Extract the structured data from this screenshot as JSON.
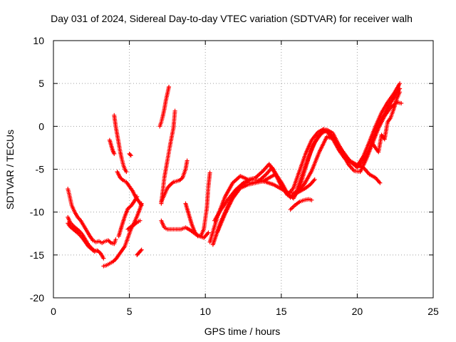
{
  "chart_data": {
    "type": "scatter",
    "title": "Day 031 of 2024, Sidereal Day-to-day VTEC variation (SDTVAR) for receiver walh",
    "xlabel": "GPS time / hours",
    "ylabel": "SDTVAR / TECUs",
    "xlim": [
      0,
      25
    ],
    "ylim": [
      -20,
      10
    ],
    "xticks": [
      "0",
      "5",
      "10",
      "15",
      "20",
      "25"
    ],
    "yticks": [
      "-20",
      "-15",
      "-10",
      "-5",
      "0",
      "5",
      "10"
    ],
    "grid": true,
    "legend": "none",
    "marker": "+",
    "color": "#ff0000",
    "series": [
      {
        "x": [
          0.95,
          1.05,
          1.2,
          1.4,
          1.6,
          1.8,
          2.0,
          2.2,
          2.4,
          2.6,
          2.8,
          3.0,
          3.2,
          3.4,
          3.6,
          3.8,
          4.0,
          4.1
        ],
        "y": [
          -7.3,
          -8.0,
          -9.2,
          -10.0,
          -10.6,
          -11.0,
          -11.6,
          -12.2,
          -12.8,
          -13.3,
          -13.5,
          -13.4,
          -13.6,
          -13.4,
          -13.3,
          -13.6,
          -13.7,
          -13.2
        ]
      },
      {
        "x": [
          0.95,
          1.1,
          1.3,
          1.5,
          1.7,
          1.9,
          2.1,
          2.3,
          2.5,
          2.7,
          2.9,
          3.1,
          3.3
        ],
        "y": [
          -10.6,
          -11.2,
          -11.6,
          -11.9,
          -12.2,
          -12.6,
          -13.2,
          -13.8,
          -14.2,
          -14.5,
          -14.5,
          -14.8,
          -15.4
        ]
      },
      {
        "x": [
          0.95,
          1.1,
          1.3,
          1.5,
          1.7,
          1.9,
          2.1,
          2.3,
          2.5,
          2.7,
          2.9
        ],
        "y": [
          -11.3,
          -11.7,
          -12.0,
          -12.3,
          -12.6,
          -13.0,
          -13.5,
          -14.0,
          -14.3,
          -14.6,
          -14.5
        ]
      },
      {
        "x": [
          3.3,
          3.5,
          3.7,
          3.9,
          4.1,
          4.3,
          4.5,
          4.7,
          4.9,
          5.1,
          5.3,
          5.5,
          5.7,
          5.8
        ],
        "y": [
          -16.3,
          -16.2,
          -16.0,
          -15.8,
          -15.5,
          -15.0,
          -14.5,
          -14.0,
          -13.0,
          -12.0,
          -11.3,
          -10.5,
          -9.6,
          -9.0
        ]
      },
      {
        "x": [
          4.0,
          4.1,
          4.2,
          4.3,
          4.4,
          4.5,
          4.6,
          4.7,
          4.8
        ],
        "y": [
          1.3,
          0.0,
          -1.0,
          -2.0,
          -3.0,
          -3.8,
          -4.5,
          -5.0,
          -5.3
        ]
      },
      {
        "x": [
          3.7,
          3.8,
          3.9,
          4.0
        ],
        "y": [
          -1.6,
          -2.2,
          -2.8,
          -3.2
        ]
      },
      {
        "x": [
          5.0,
          5.1
        ],
        "y": [
          -3.2,
          -3.4
        ]
      },
      {
        "x": [
          4.2,
          4.4,
          4.6,
          4.8,
          5.0,
          5.2,
          5.4,
          5.6,
          5.8
        ],
        "y": [
          -5.3,
          -6.0,
          -6.3,
          -6.5,
          -7.0,
          -7.5,
          -8.2,
          -8.7,
          -9.2
        ]
      },
      {
        "x": [
          4.3,
          4.5,
          4.7,
          4.9,
          5.1,
          5.3,
          5.5
        ],
        "y": [
          -12.8,
          -11.6,
          -10.5,
          -9.6,
          -9.3,
          -8.8,
          -8.2
        ]
      },
      {
        "x": [
          4.9,
          5.1,
          5.3,
          5.5,
          5.7
        ],
        "y": [
          -12.0,
          -11.7,
          -11.5,
          -11.2,
          -11.0
        ]
      },
      {
        "x": [
          5.5,
          5.6,
          5.7,
          5.8
        ],
        "y": [
          -15.0,
          -14.8,
          -14.6,
          -14.4
        ]
      },
      {
        "x": [
          7.0,
          7.1,
          7.2,
          7.3,
          7.4,
          7.5,
          7.6
        ],
        "y": [
          0.0,
          0.5,
          1.2,
          2.0,
          3.0,
          3.8,
          4.6
        ]
      },
      {
        "x": [
          7.1,
          7.3,
          7.5,
          7.7,
          7.9,
          8.0
        ],
        "y": [
          -9.0,
          -6.0,
          -4.0,
          -2.0,
          -0.2,
          1.8
        ]
      },
      {
        "x": [
          7.1,
          7.3,
          7.5,
          7.7,
          7.9,
          8.1,
          8.3,
          8.5,
          8.7,
          8.8
        ],
        "y": [
          -8.8,
          -8.0,
          -7.2,
          -6.8,
          -6.5,
          -6.4,
          -6.3,
          -6.0,
          -5.0,
          -4.0
        ]
      },
      {
        "x": [
          7.1,
          7.3,
          7.5,
          7.8,
          8.1,
          8.4,
          8.7,
          9.0,
          9.3,
          9.6,
          9.9,
          10.2
        ],
        "y": [
          -11.0,
          -11.8,
          -12.0,
          -12.0,
          -12.0,
          -12.0,
          -11.8,
          -12.1,
          -12.5,
          -12.8,
          -13.0,
          -12.4
        ]
      },
      {
        "x": [
          8.7,
          8.9,
          9.1,
          9.3,
          9.5,
          9.7,
          9.9,
          10.1,
          10.2,
          10.3
        ],
        "y": [
          -9.0,
          -10.2,
          -11.4,
          -12.3,
          -12.8,
          -12.8,
          -12.0,
          -9.5,
          -7.0,
          -5.4
        ]
      },
      {
        "x": [
          10.3,
          10.8,
          11.3,
          11.8,
          12.3,
          12.8,
          13.3,
          13.8,
          14.2,
          14.6,
          15.0,
          15.4,
          15.8,
          16.2,
          16.6,
          17.0,
          17.4,
          17.8,
          18.0,
          18.4,
          18.8,
          19.2,
          19.6,
          20.0,
          20.4,
          20.8,
          21.2,
          21.6,
          22.0,
          22.4,
          22.8
        ],
        "y": [
          -13.5,
          -10.5,
          -8.2,
          -6.6,
          -5.8,
          -6.2,
          -6.0,
          -5.2,
          -4.4,
          -5.5,
          -7.0,
          -8.0,
          -7.2,
          -5.2,
          -3.2,
          -1.6,
          -0.7,
          -0.3,
          -0.5,
          -1.5,
          -2.8,
          -3.8,
          -4.2,
          -4.6,
          -3.5,
          -1.8,
          0.0,
          1.6,
          2.8,
          3.8,
          5.0
        ]
      },
      {
        "x": [
          10.5,
          11.0,
          11.5,
          12.0,
          12.5,
          13.0,
          13.5,
          14.0,
          14.4,
          14.8,
          15.2,
          15.6,
          16.0,
          16.4,
          16.8,
          17.2,
          17.6,
          18.0,
          18.4,
          18.8,
          19.2,
          19.6,
          20.0,
          20.4,
          20.8,
          21.2,
          21.6,
          22.0,
          22.4,
          22.8
        ],
        "y": [
          -13.8,
          -11.2,
          -9.2,
          -7.6,
          -6.6,
          -6.6,
          -6.4,
          -5.6,
          -4.8,
          -6.0,
          -7.4,
          -8.3,
          -7.6,
          -5.6,
          -3.6,
          -1.9,
          -0.9,
          -0.4,
          -0.8,
          -2.2,
          -3.4,
          -4.2,
          -4.8,
          -4.0,
          -2.6,
          -0.8,
          0.8,
          2.2,
          3.3,
          4.4
        ]
      },
      {
        "x": [
          10.8,
          11.3,
          11.8,
          12.3,
          12.8,
          13.3,
          13.8,
          14.2,
          14.6,
          15.0,
          15.4,
          15.8,
          16.2,
          16.6,
          17.0,
          17.4,
          17.8,
          18.2,
          18.6,
          19.0,
          19.4,
          19.8,
          20.2,
          20.6,
          21.0,
          21.4,
          21.8,
          22.2,
          22.6,
          22.9
        ],
        "y": [
          -12.3,
          -10.2,
          -8.4,
          -7.2,
          -6.8,
          -6.6,
          -6.4,
          -6.0,
          -5.6,
          -6.5,
          -7.8,
          -8.4,
          -7.2,
          -4.8,
          -2.6,
          -1.2,
          -0.5,
          -0.8,
          -1.8,
          -3.0,
          -4.4,
          -5.2,
          -5.3,
          -3.8,
          -2.0,
          -0.2,
          1.2,
          2.2,
          2.8,
          2.7
        ]
      },
      {
        "x": [
          10.6,
          11.0,
          11.5,
          12.0,
          12.5,
          13.0,
          13.5,
          14.0,
          14.5,
          15.0,
          15.5,
          16.0,
          16.5,
          17.0,
          17.5,
          18.0,
          18.5,
          19.0,
          19.5,
          20.0,
          20.4,
          20.8,
          21.2,
          21.5
        ],
        "y": [
          -11.0,
          -9.8,
          -8.5,
          -7.4,
          -6.6,
          -6.2,
          -6.3,
          -6.5,
          -6.8,
          -7.3,
          -7.8,
          -7.7,
          -6.8,
          -5.2,
          -3.0,
          -1.2,
          -1.5,
          -2.8,
          -4.0,
          -4.5,
          -4.8,
          -5.6,
          -6.0,
          -6.6
        ]
      },
      {
        "x": [
          15.6,
          15.9,
          16.2,
          16.5,
          16.8,
          17.0
        ],
        "y": [
          -9.7,
          -9.2,
          -8.8,
          -8.6,
          -8.5,
          -8.6
        ]
      },
      {
        "x": [
          16.0,
          16.3,
          16.6,
          16.9,
          17.2
        ],
        "y": [
          -7.8,
          -7.5,
          -7.2,
          -6.8,
          -6.2
        ]
      },
      {
        "x": [
          21.0,
          21.2,
          21.4,
          21.6,
          21.8,
          22.0,
          22.2,
          22.4,
          22.6,
          22.8
        ],
        "y": [
          -2.0,
          -2.5,
          -3.0,
          -1.0,
          -1.5,
          0.5,
          1.0,
          2.0,
          3.2,
          4.0
        ]
      }
    ]
  }
}
